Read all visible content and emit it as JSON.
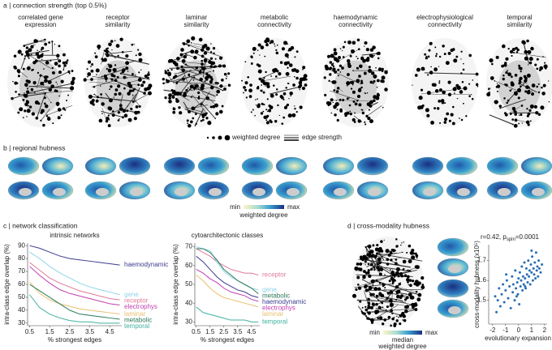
{
  "panels": {
    "a": {
      "label": "a | connection strength (top 0.5%)",
      "titles": [
        [
          "correlated gene",
          "expression"
        ],
        [
          "receptor",
          "similarity"
        ],
        [
          "laminar",
          "similarity"
        ],
        [
          "metabolic",
          "connectivity"
        ],
        [
          "haemodynamic",
          "connectivity"
        ],
        [
          "electrophysiological",
          "connectivity"
        ],
        [
          "temporal",
          "similarity"
        ]
      ],
      "legend": {
        "degree": "weighted degree",
        "edge": "edge strength"
      }
    },
    "b": {
      "label": "b | regional hubness",
      "colorbar": {
        "min": "min",
        "max": "max",
        "label": [
          "weighted degree"
        ]
      }
    },
    "c": {
      "label": "c | network classification"
    },
    "d": {
      "label": "d | cross-modality hubness",
      "colorbar": {
        "min": "min",
        "max": "max",
        "label": [
          "median",
          "weighted degree"
        ]
      }
    }
  },
  "chart_data": [
    {
      "type": "line",
      "title": "intrinsic networks",
      "x_label": "% strongest edges",
      "y_label": "intra-class edge overlap (%)",
      "x": [
        0.5,
        1,
        1.5,
        2,
        2.5,
        3,
        3.5,
        4,
        4.5,
        5
      ],
      "xlim": [
        0.4,
        5.1
      ],
      "xticks": [
        0.5,
        1.5,
        2.5,
        3.5,
        4.5
      ],
      "ylim": [
        28,
        92
      ],
      "yticks": [
        30,
        40,
        50,
        60,
        70,
        80,
        90
      ],
      "series": [
        {
          "name": "haemodynamic",
          "color": "#3b3b8f",
          "values": [
            90,
            88,
            85,
            82,
            80,
            79,
            78,
            77,
            76,
            75
          ]
        },
        {
          "name": "gene",
          "color": "#8fd3ea",
          "values": [
            85,
            80,
            74,
            69,
            65,
            61,
            58,
            56,
            54,
            52
          ]
        },
        {
          "name": "receptor",
          "color": "#e07a9a",
          "values": [
            77,
            71,
            65,
            61,
            58,
            55,
            53,
            51,
            49,
            48
          ]
        },
        {
          "name": "electrophys",
          "color": "#c040b0",
          "values": [
            74,
            67,
            61,
            56,
            53,
            51,
            49,
            47,
            45,
            44
          ]
        },
        {
          "name": "laminar",
          "color": "#e8c070",
          "values": [
            62,
            53,
            48,
            45,
            43,
            41,
            40,
            39,
            38,
            37
          ]
        },
        {
          "name": "metabolic",
          "color": "#2a7a5a",
          "values": [
            60,
            55,
            50,
            45,
            40,
            37,
            36,
            35,
            34,
            33
          ]
        },
        {
          "name": "temporal",
          "color": "#40b0a0",
          "values": [
            52,
            42,
            37,
            34,
            32,
            31,
            31,
            30,
            30,
            30
          ]
        }
      ]
    },
    {
      "type": "line",
      "title": "cytoarchitectonic classes",
      "x_label": "% strongest edges",
      "y_label": "intra-class edge overlap (%)",
      "x": [
        0.5,
        1,
        1.5,
        2,
        2.5,
        3,
        3.5,
        4,
        4.5,
        5
      ],
      "xlim": [
        0.4,
        5.1
      ],
      "xticks": [
        0.5,
        1.5,
        2.5,
        3.5,
        4.5
      ],
      "ylim": [
        28,
        72
      ],
      "yticks": [
        30,
        40,
        50,
        60,
        70
      ],
      "series": [
        {
          "name": "receptor",
          "color": "#e07a9a",
          "values": [
            69,
            67,
            65,
            62,
            60,
            58,
            57,
            56,
            56,
            55
          ]
        },
        {
          "name": "gene",
          "color": "#8fd3ea",
          "values": [
            70,
            69,
            68,
            62,
            57,
            54,
            52,
            50,
            48,
            47
          ]
        },
        {
          "name": "metabolic",
          "color": "#2a7a5a",
          "values": [
            69,
            69,
            67,
            63,
            58,
            55,
            52,
            50,
            48,
            45
          ]
        },
        {
          "name": "haemodynamic",
          "color": "#3b3b8f",
          "values": [
            65,
            62,
            58,
            54,
            51,
            49,
            47,
            46,
            44,
            43
          ]
        },
        {
          "name": "electrophys",
          "color": "#c040b0",
          "values": [
            58,
            56,
            53,
            51,
            48,
            46,
            45,
            44,
            42,
            41
          ]
        },
        {
          "name": "laminar",
          "color": "#e8c070",
          "values": [
            55,
            52,
            48,
            45,
            43,
            42,
            41,
            40,
            39,
            38
          ]
        },
        {
          "name": "temporal",
          "color": "#40b0a0",
          "values": [
            38,
            35,
            34,
            33,
            32,
            31,
            31,
            31,
            30,
            30
          ]
        }
      ]
    },
    {
      "type": "scatter",
      "annotation": [
        "r=0.42, p",
        "spin",
        "=0.0001"
      ],
      "x_label": "evolutionary expansion",
      "y_label": "cross-modality hubness (x10⁵)",
      "color": "#2a6db5",
      "xlim": [
        -2.3,
        2.2
      ],
      "xticks": [
        -2,
        -1,
        0,
        1,
        2
      ],
      "ylim": [
        1.38,
        1.78
      ],
      "yticks": [
        1.5,
        1.6,
        1.7
      ],
      "x": [
        -1.8,
        -1.6,
        -1.5,
        -1.4,
        -1.3,
        -1.2,
        -1.1,
        -1.0,
        -0.9,
        -0.8,
        -0.7,
        -0.6,
        -0.5,
        -0.45,
        -0.4,
        -0.3,
        -0.25,
        -0.2,
        -0.1,
        -0.05,
        0,
        0.05,
        0.1,
        0.15,
        0.2,
        0.25,
        0.3,
        0.35,
        0.4,
        0.45,
        0.5,
        0.55,
        0.6,
        0.65,
        0.7,
        0.75,
        0.8,
        0.85,
        0.9,
        0.95,
        1.0,
        1.05,
        1.1,
        1.15,
        1.2,
        1.25,
        1.3,
        1.35,
        1.4,
        1.45,
        1.5,
        1.55,
        1.6,
        1.7,
        1.8,
        -1.7,
        -0.95,
        -0.15,
        0.5,
        1.0
      ],
      "values": [
        1.52,
        1.5,
        1.56,
        1.47,
        1.53,
        1.58,
        1.49,
        1.55,
        1.6,
        1.51,
        1.57,
        1.46,
        1.62,
        1.54,
        1.58,
        1.5,
        1.65,
        1.56,
        1.59,
        1.53,
        1.61,
        1.48,
        1.64,
        1.57,
        1.6,
        1.67,
        1.55,
        1.62,
        1.58,
        1.69,
        1.61,
        1.56,
        1.66,
        1.63,
        1.59,
        1.7,
        1.62,
        1.65,
        1.58,
        1.68,
        1.64,
        1.72,
        1.6,
        1.66,
        1.63,
        1.69,
        1.61,
        1.74,
        1.65,
        1.67,
        1.62,
        1.7,
        1.66,
        1.64,
        1.68,
        1.44,
        1.63,
        1.52,
        1.57,
        1.75
      ]
    }
  ]
}
